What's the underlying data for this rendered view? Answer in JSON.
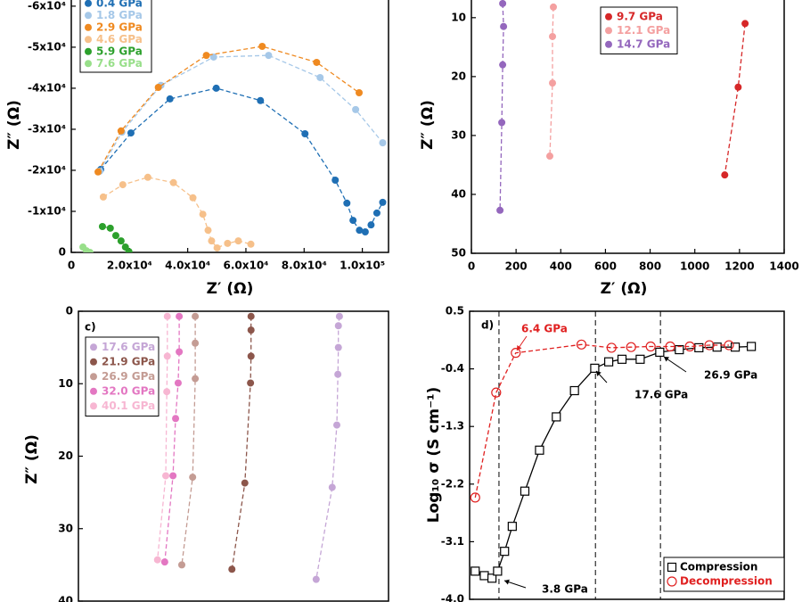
{
  "chart_data": [
    {
      "type": "scatter",
      "xlabel": "Z′ (Ω)",
      "ylabel": "Z″ (Ω)",
      "legend": "top-left",
      "xlim": [
        0,
        109000
      ],
      "ylim": [
        0,
        -61500
      ],
      "xticks": [
        0,
        {
          "value": 20000,
          "label": "2.0x10⁴"
        },
        {
          "value": 40000,
          "label": "4.0x10⁴"
        },
        {
          "value": 60000,
          "label": "6.0x10⁴"
        },
        {
          "value": 80000,
          "label": "8.0x10⁴"
        },
        {
          "value": 100000,
          "label": "1.0x10⁵"
        }
      ],
      "yticks": [
        0,
        {
          "value": -10000,
          "label": "-1x10⁴"
        },
        {
          "value": -20000,
          "label": "-2x10⁴"
        },
        {
          "value": -30000,
          "label": "-3x10⁴"
        },
        {
          "value": -40000,
          "label": "-4x10⁴"
        },
        {
          "value": -50000,
          "label": "-5x10⁴"
        },
        {
          "value": -60000,
          "label": "-6x10⁴"
        }
      ],
      "series": [
        {
          "name": "0.4 GPa",
          "color": "#1f6fb4",
          "marker": "circle",
          "line_style": "dashed",
          "x": [
            10100,
            20500,
            33900,
            49800,
            65000,
            80300,
            90700,
            94700,
            96800,
            99000,
            101000,
            103000,
            105000,
            107000
          ],
          "values": [
            -20200,
            -29100,
            -37400,
            -40000,
            -37000,
            -28900,
            -17600,
            -12000,
            -7800,
            -5400,
            -5000,
            -6700,
            -9600,
            -12200
          ]
        },
        {
          "name": "1.8 GPa",
          "color": "#a6c8e8",
          "marker": "circle",
          "line_style": "dashed",
          "x": [
            9800,
            17400,
            30800,
            48900,
            67800,
            85500,
            97700,
            107000
          ],
          "values": [
            -19800,
            -29300,
            -40700,
            -47600,
            -48000,
            -42600,
            -34800,
            -26700
          ]
        },
        {
          "name": "2.9 GPa",
          "color": "#ef8a21",
          "marker": "circle",
          "line_style": "dashed",
          "x": [
            9200,
            17100,
            29900,
            46400,
            65600,
            84300,
            98900
          ],
          "values": [
            -19600,
            -29600,
            -40200,
            -48000,
            -50200,
            -46300,
            -38900
          ]
        },
        {
          "name": "4.6 GPa",
          "color": "#f6c08a",
          "marker": "circle",
          "line_style": "dashed",
          "x": [
            11000,
            17700,
            26300,
            35100,
            41800,
            45200,
            47000,
            48200,
            50100,
            53700,
            57400,
            61700
          ],
          "values": [
            -13500,
            -16500,
            -18300,
            -17000,
            -13300,
            -9300,
            -5400,
            -2800,
            -1100,
            -2200,
            -2800,
            -2000
          ]
        },
        {
          "name": "5.9 GPa",
          "color": "#2ca02c",
          "marker": "circle",
          "line_style": "dashed",
          "x": [
            10700,
            13400,
            15300,
            17100,
            18600,
            19800
          ],
          "values": [
            -6300,
            -5900,
            -4100,
            -2800,
            -1300,
            -200
          ]
        },
        {
          "name": "7.6 GPa",
          "color": "#98df8a",
          "marker": "circle",
          "line_style": "dashed",
          "x": [
            4000,
            5200,
            6400
          ],
          "values": [
            -1300,
            -400,
            0
          ]
        }
      ]
    },
    {
      "type": "scatter",
      "xlabel": "Z′ (Ω)",
      "ylabel": "Z″ (Ω)",
      "legend": "top-right",
      "xlim": [
        0,
        1400
      ],
      "ylim": [
        50,
        7
      ],
      "xticks": [
        0,
        200,
        400,
        600,
        800,
        1000,
        1200,
        1400
      ],
      "yticks": [
        10,
        20,
        30,
        40,
        50
      ],
      "series": [
        {
          "name": "9.7 GPa",
          "color": "#d62728",
          "marker": "circle",
          "line_style": "dashed",
          "x": [
            1225,
            1194,
            1134
          ],
          "values": [
            11.0,
            21.8,
            36.7
          ]
        },
        {
          "name": "12.1 GPa",
          "color": "#f4a0a0",
          "marker": "circle",
          "line_style": "dashed",
          "x": [
            367,
            363,
            363,
            351
          ],
          "values": [
            8.2,
            13.2,
            21.1,
            33.5
          ]
        },
        {
          "name": "14.7 GPa",
          "color": "#9467bd",
          "marker": "circle",
          "line_style": "dashed",
          "x": [
            140,
            144,
            140,
            136,
            128
          ],
          "values": [
            7.6,
            11.5,
            18.0,
            27.8,
            42.7
          ]
        }
      ]
    },
    {
      "type": "scatter",
      "label": "c)",
      "ylabel": "Z″ (Ω)",
      "legend": "top-left",
      "xlim": [
        0,
        600
      ],
      "ylim": [
        40,
        0
      ],
      "yticks": [
        0,
        10,
        20,
        30,
        40
      ],
      "series": [
        {
          "name": "17.6 GPa",
          "color": "#c5a6d6",
          "marker": "circle",
          "line_style": "dashed",
          "x": [
            505,
            503,
            503,
            502,
            500,
            491,
            460
          ],
          "values": [
            0.7,
            2.0,
            5.0,
            8.7,
            15.7,
            24.3,
            37.0
          ]
        },
        {
          "name": "21.9 GPa",
          "color": "#8c564b",
          "marker": "circle",
          "line_style": "dashed",
          "x": [
            334,
            334,
            334,
            333,
            322,
            297
          ],
          "values": [
            0.7,
            2.6,
            6.2,
            9.9,
            23.7,
            35.6
          ]
        },
        {
          "name": "26.9 GPa",
          "color": "#c49c94",
          "marker": "circle",
          "line_style": "dashed",
          "x": [
            226,
            226,
            226,
            221,
            200
          ],
          "values": [
            0.7,
            4.4,
            9.3,
            22.9,
            35.0
          ]
        },
        {
          "name": "32.0 GPa",
          "color": "#e377c2",
          "marker": "circle",
          "line_style": "dashed",
          "x": [
            195,
            195,
            193,
            188,
            183,
            167
          ],
          "values": [
            0.7,
            5.6,
            9.9,
            14.8,
            22.7,
            34.6
          ]
        },
        {
          "name": "40.1 GPa",
          "color": "#f7b6d2",
          "marker": "circle",
          "line_style": "dashed",
          "x": [
            172,
            172,
            171,
            169,
            153
          ],
          "values": [
            0.7,
            6.2,
            11.1,
            22.7,
            34.3
          ]
        }
      ]
    },
    {
      "type": "scatter",
      "label": "d)",
      "ylabel": "Log₁₀ σ (S cm⁻¹)",
      "legend": "bottom-right",
      "xlim": [
        -0.4,
        44.6
      ],
      "ylim": [
        -4.0,
        0.5
      ],
      "yticks": [
        0.5,
        -0.4,
        -1.3,
        -2.2,
        -3.1,
        {
          "value": -4,
          "label": "-4.0"
        }
      ],
      "vlines": [
        3.8,
        17.6,
        26.9
      ],
      "annotations": [
        {
          "text": "6.4 GPa",
          "color": "#e02020"
        },
        {
          "text": "17.6 GPa",
          "color": "#000000"
        },
        {
          "text": "26.9 GPa",
          "color": "#000000"
        },
        {
          "text": "3.8 GPa",
          "color": "#000000"
        }
      ],
      "series": [
        {
          "name": "Compression",
          "color": "#000000",
          "marker": "square",
          "line_style": "solid",
          "x": [
            0.4,
            1.7,
            2.8,
            3.6,
            4.6,
            5.7,
            7.5,
            9.6,
            12.0,
            14.6,
            17.5,
            19.5,
            21.4,
            24.0,
            26.8,
            29.6,
            32.4,
            35.0,
            37.6,
            39.9
          ],
          "values": [
            -3.56,
            -3.63,
            -3.67,
            -3.56,
            -3.25,
            -2.86,
            -2.31,
            -1.67,
            -1.15,
            -0.74,
            -0.39,
            -0.29,
            -0.25,
            -0.25,
            -0.14,
            -0.1,
            -0.07,
            -0.06,
            -0.06,
            -0.05
          ]
        },
        {
          "name": "Decompression",
          "color": "#e02020",
          "marker": "open-circle",
          "line_style": "dashed",
          "x": [
            0.4,
            3.4,
            6.2,
            15.6,
            19.9,
            22.7,
            25.5,
            28.3,
            31.1,
            33.9,
            36.7
          ],
          "values": [
            -2.41,
            -0.77,
            -0.15,
            -0.02,
            -0.07,
            -0.06,
            -0.05,
            -0.05,
            -0.05,
            -0.03,
            -0.03
          ]
        }
      ]
    }
  ]
}
